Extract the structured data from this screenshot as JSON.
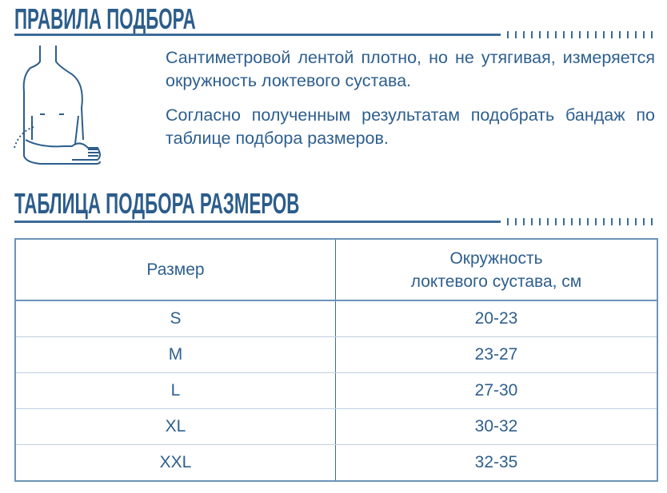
{
  "rules": {
    "title": "ПРАВИЛА ПОДБОРА",
    "paragraph1": "Сантиметровой лентой плотно, но не утягивая, измеряется окружность локтевого сустава.",
    "paragraph2": "Согласно полученным результатам подобрать бандаж по таблице подбора размеров.",
    "illustration": "elbow-measurement-figure"
  },
  "size_table": {
    "title": "ТАБЛИЦА ПОДБОРА РАЗМЕРОВ",
    "headers": [
      "Размер",
      "Окружность",
      "локтевого сустава, см"
    ],
    "rows": [
      {
        "size": "S",
        "range": "20-23"
      },
      {
        "size": "M",
        "range": "23-27"
      },
      {
        "size": "L",
        "range": "27-30"
      },
      {
        "size": "XL",
        "range": "30-32"
      },
      {
        "size": "XXL",
        "range": "32-35"
      }
    ]
  },
  "colors": {
    "accent": "#2c5d8b"
  }
}
